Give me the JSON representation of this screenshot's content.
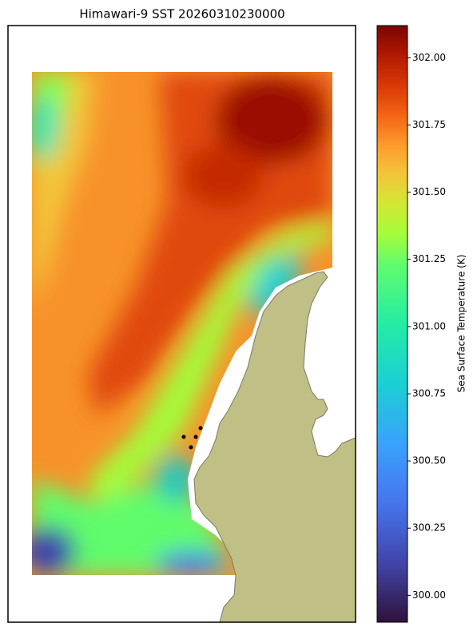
{
  "chart_data": {
    "type": "map",
    "title": "Himawari-9 SST 20260310230000",
    "colorbar_label": "Sea Surface Temperature (K)",
    "clim": [
      299.9,
      302.12
    ],
    "cticks": [
      {
        "value": 300,
        "label": "300.00"
      },
      300.25,
      {
        "value": 300.5,
        "label": "300.50"
      },
      300.75,
      {
        "value": 301,
        "label": "301.00"
      },
      301.25,
      {
        "value": 301.5,
        "label": "301.50"
      },
      301.75,
      {
        "value": 302,
        "label": "302.00"
      }
    ]
  }
}
